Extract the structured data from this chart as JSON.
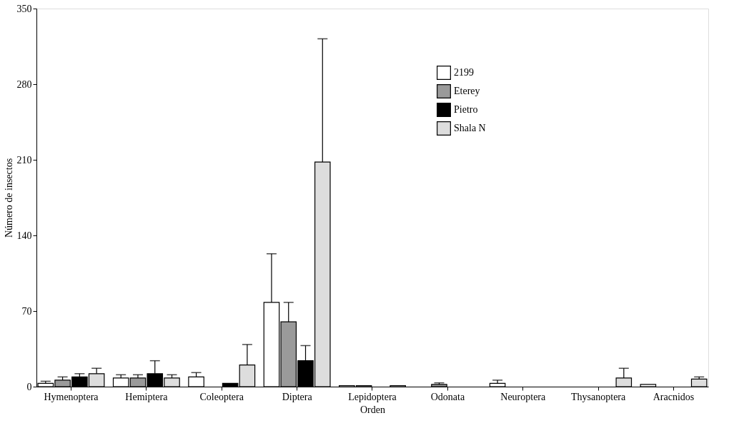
{
  "chart_data": {
    "type": "bar",
    "xlabel": "Orden",
    "ylabel": "Número de insectos",
    "categories": [
      "Hymenoptera",
      "Hemiptera",
      "Coleoptera",
      "Diptera",
      "Lepidoptera",
      "Odonata",
      "Neuroptera",
      "Thysanoptera",
      "Aracnidos"
    ],
    "series": [
      {
        "name": "2199",
        "color": "#ffffff",
        "values": [
          3,
          8,
          9,
          78,
          1,
          null,
          3,
          null,
          2
        ],
        "errors": [
          2,
          3,
          4,
          45,
          null,
          null,
          3,
          null,
          null
        ]
      },
      {
        "name": "Eterey",
        "color": "#9a9a9a",
        "values": [
          6,
          8,
          null,
          60,
          1,
          2,
          null,
          null,
          null
        ],
        "errors": [
          3,
          3,
          null,
          18,
          null,
          1.5,
          null,
          null,
          null
        ]
      },
      {
        "name": "Pietro",
        "color": "#000000",
        "values": [
          9,
          12,
          3,
          24,
          null,
          null,
          null,
          null,
          null
        ],
        "errors": [
          3,
          12,
          null,
          14,
          null,
          null,
          null,
          null,
          null
        ]
      },
      {
        "name": "Shala N",
        "color": "#dddddd",
        "values": [
          12,
          8,
          20,
          208,
          1,
          null,
          null,
          8,
          7
        ],
        "errors": [
          5,
          3,
          19,
          114,
          null,
          null,
          null,
          9,
          2
        ]
      }
    ],
    "ylim": [
      0,
      350
    ],
    "yticks": [
      0,
      70,
      140,
      210,
      280,
      350
    ],
    "grid": false,
    "legend": "top right"
  }
}
